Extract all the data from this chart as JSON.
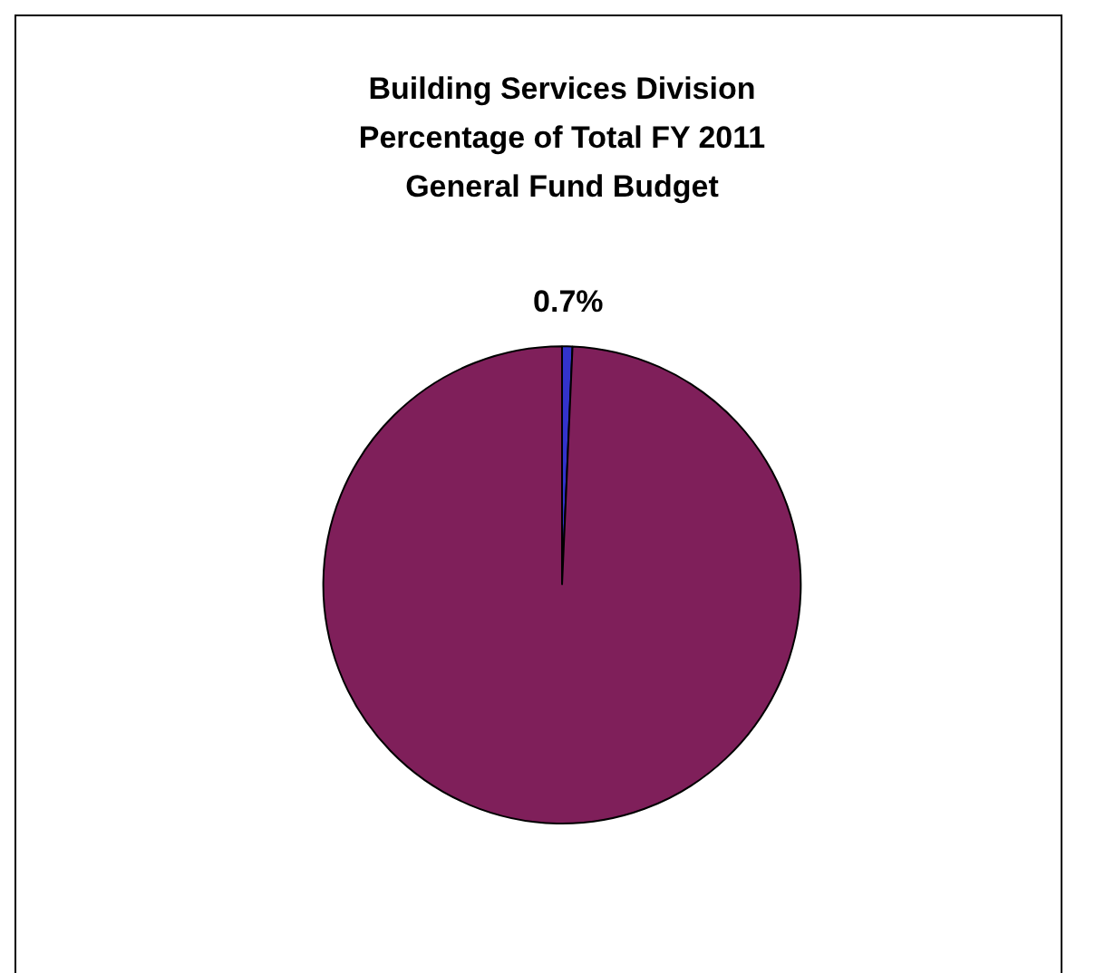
{
  "chart_data": {
    "type": "pie",
    "title": "Building Services Division\nPercentage of Total FY 2011\nGeneral Fund Budget",
    "categories": [
      null,
      null
    ],
    "values": [
      0.7,
      99.3
    ],
    "colors": [
      "#3333cc",
      "#7f1f5a"
    ],
    "value_labels": [
      "0.7%",
      null
    ],
    "legend": false
  }
}
